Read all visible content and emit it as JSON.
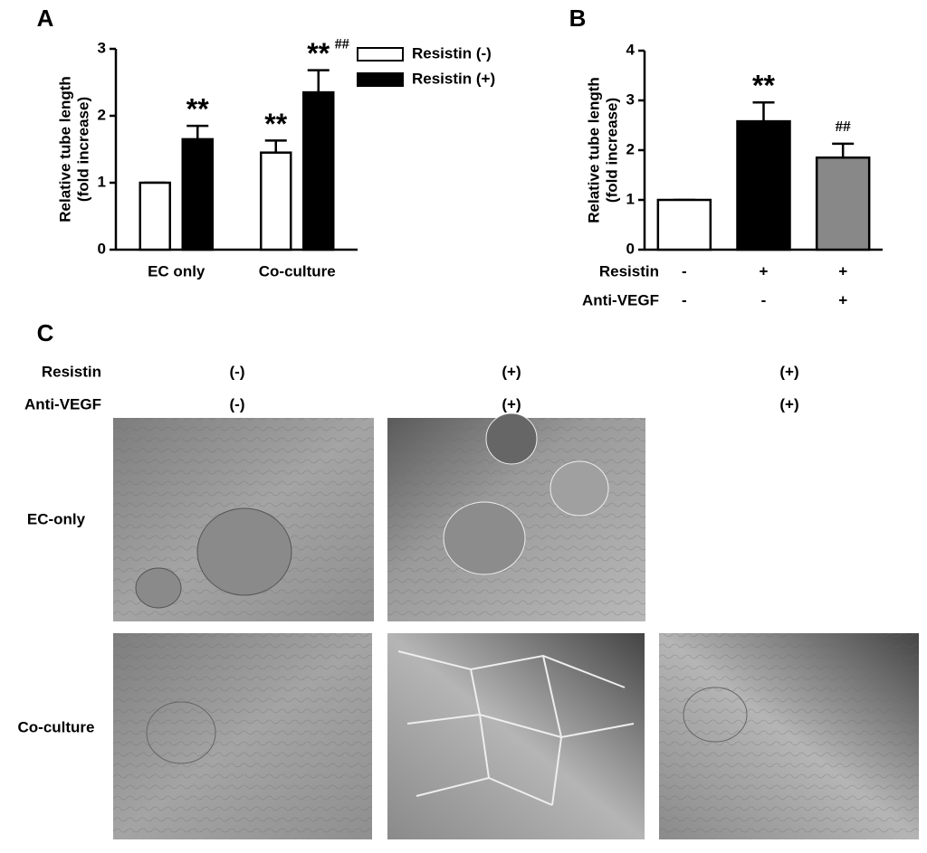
{
  "chart_data": [
    {
      "type": "grouped_bar",
      "panel": "A",
      "ylabel": [
        "Relative tube length",
        "(fold increase)"
      ],
      "categories": [
        "EC only",
        "Co-culture"
      ],
      "series": [
        {
          "name": "Resistin (-)",
          "color": "#ffffff",
          "values": [
            1,
            1.45
          ],
          "errors": [
            0,
            0.18
          ],
          "stars": [
            null,
            "**"
          ],
          "hashes": [
            null,
            null
          ]
        },
        {
          "name": "Resistin (+)",
          "color": "#000000",
          "values": [
            1.65,
            2.35
          ],
          "errors": [
            0.2,
            0.33
          ],
          "stars": [
            "**",
            "**"
          ],
          "hashes": [
            null,
            "##"
          ]
        }
      ],
      "ylim": [
        0,
        3
      ],
      "yticks": [
        0,
        1,
        2,
        3
      ]
    },
    {
      "type": "bar",
      "panel": "B",
      "ylabel": [
        "Relative tube length",
        "(fold increase)"
      ],
      "values": [
        1,
        2.58,
        1.85
      ],
      "errors": [
        0,
        0.38,
        0.28
      ],
      "colors": [
        "#ffffff",
        "#000000",
        "#888888"
      ],
      "stars": [
        null,
        "**",
        null
      ],
      "hashes": [
        null,
        null,
        "##"
      ],
      "conditions": [
        {
          "name": "Resistin",
          "values": [
            "-",
            "+",
            "+"
          ]
        },
        {
          "name": "Anti-VEGF",
          "values": [
            "-",
            "-",
            "+"
          ]
        }
      ],
      "ylim": [
        0,
        4
      ],
      "yticks": [
        0,
        1,
        2,
        3,
        4
      ]
    }
  ],
  "panel_c": {
    "label": "C",
    "conditions": [
      {
        "name": "Resistin",
        "values": [
          "(-)",
          "(+)",
          "(+)"
        ]
      },
      {
        "name": "Anti-VEGF",
        "values": [
          "(-)",
          "(+)",
          "(+)"
        ]
      }
    ],
    "rows": [
      "EC-only",
      "Co-culture"
    ]
  }
}
